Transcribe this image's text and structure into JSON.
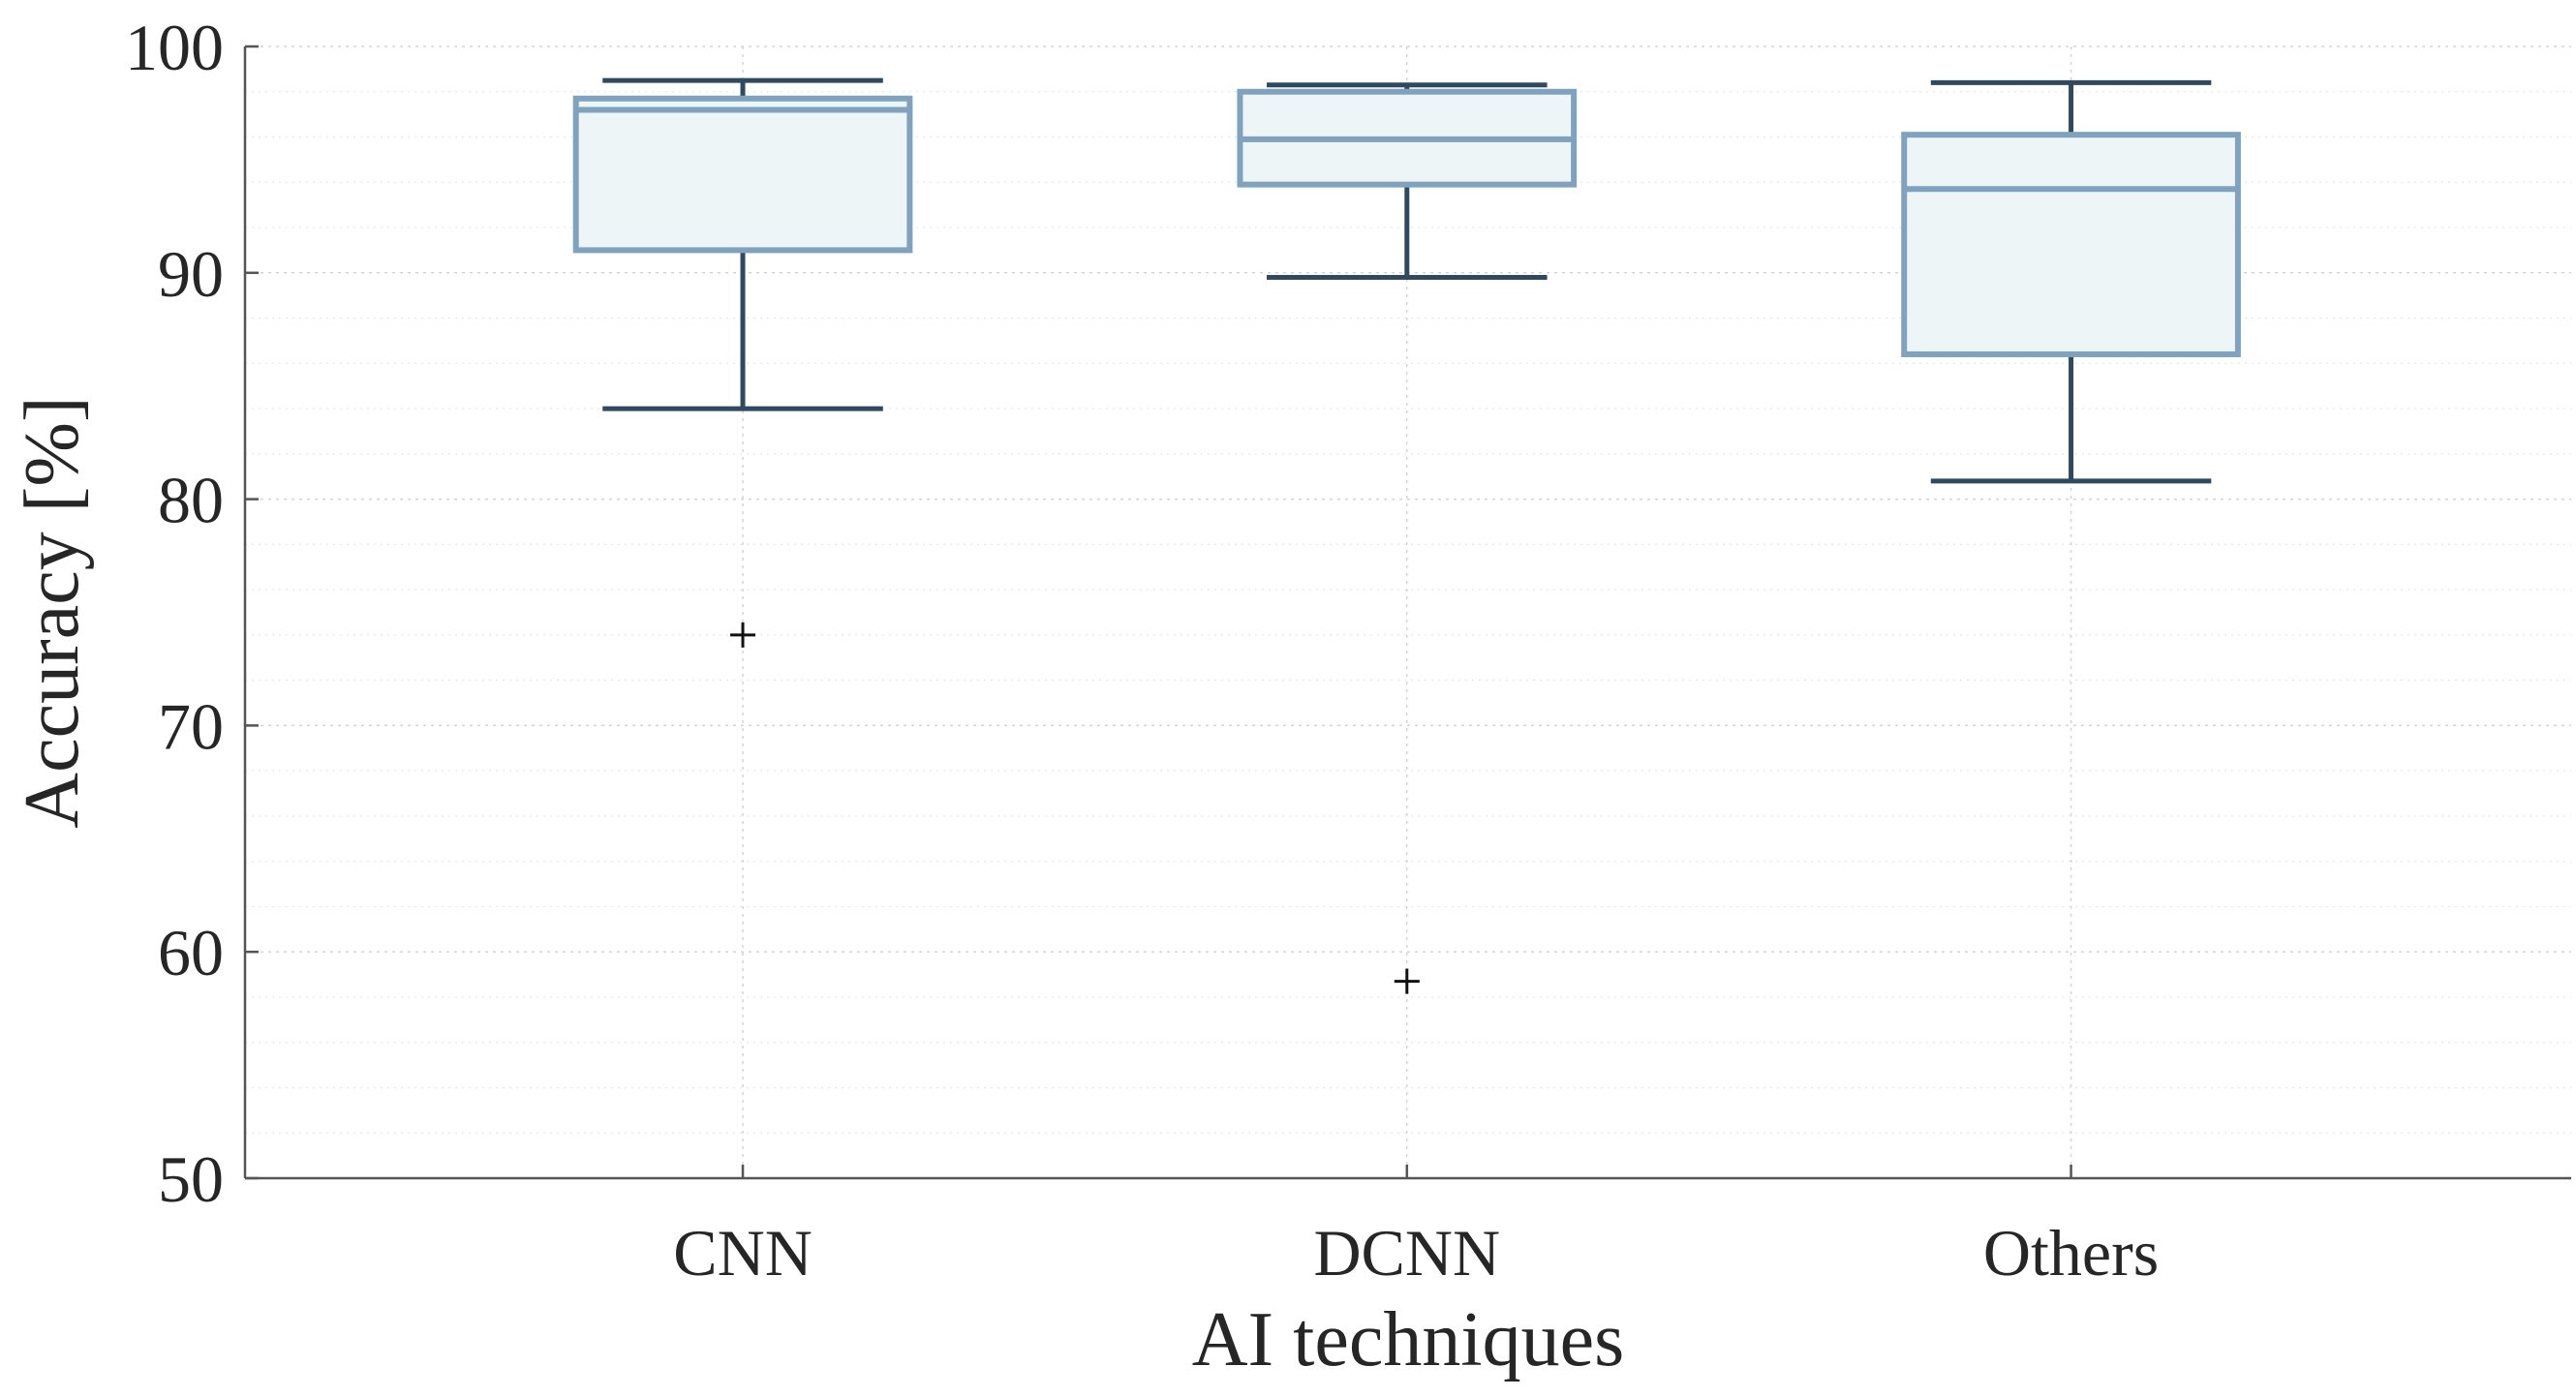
{
  "chart_data": {
    "type": "box",
    "title": "",
    "xlabel": "AI techniques",
    "ylabel": "Accuracy [%]",
    "ylim": [
      50,
      100
    ],
    "yticks": [
      50,
      60,
      70,
      80,
      90,
      100
    ],
    "yminor_step": 2,
    "grid": true,
    "categories": [
      "CNN",
      "DCNN",
      "Others"
    ],
    "boxes": [
      {
        "category": "CNN",
        "whisker_low": 84.0,
        "q1": 91.0,
        "median": 97.2,
        "q3": 97.7,
        "whisker_high": 98.5,
        "outliers": [
          74.0
        ]
      },
      {
        "category": "DCNN",
        "whisker_low": 89.8,
        "q1": 93.9,
        "median": 95.9,
        "q3": 98.0,
        "whisker_high": 98.3,
        "outliers": [
          58.7
        ]
      },
      {
        "category": "Others",
        "whisker_low": 80.8,
        "q1": 86.4,
        "median": 93.7,
        "q3": 96.1,
        "whisker_high": 98.4,
        "outliers": []
      }
    ],
    "colors": {
      "box_fill": "#edf5f7",
      "box_edge": "#7fa2bf",
      "whisker": "#2f4a5e",
      "outlier": "#111111",
      "axis": "#555555",
      "text": "#262626"
    }
  }
}
